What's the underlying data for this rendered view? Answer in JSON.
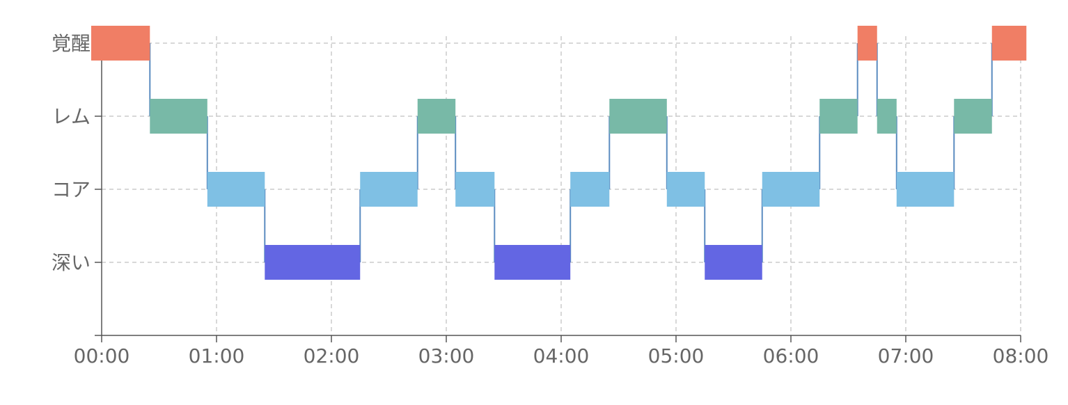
{
  "chart_data": {
    "type": "timeline",
    "x_ticks": [
      "00:00",
      "01:00",
      "02:00",
      "03:00",
      "04:00",
      "05:00",
      "06:00",
      "07:00",
      "08:00"
    ],
    "xlim_hours": [
      0,
      8.05
    ],
    "grid": true,
    "categories": [
      "深い",
      "コア",
      "レム",
      "覚醒"
    ],
    "category_colors": {
      "覚醒": "#f07e65",
      "レム": "#78b9a7",
      "コア": "#7fc0e4",
      "深い": "#6366e3"
    },
    "line_color": "#5b8cc0",
    "segments": [
      {
        "stage": "覚醒",
        "start": 0.0,
        "end": 0.42
      },
      {
        "stage": "レム",
        "start": 0.42,
        "end": 0.92
      },
      {
        "stage": "コア",
        "start": 0.92,
        "end": 1.42
      },
      {
        "stage": "深い",
        "start": 1.42,
        "end": 2.25
      },
      {
        "stage": "コア",
        "start": 2.25,
        "end": 2.75
      },
      {
        "stage": "レム",
        "start": 2.75,
        "end": 3.08
      },
      {
        "stage": "コア",
        "start": 3.08,
        "end": 3.42
      },
      {
        "stage": "深い",
        "start": 3.42,
        "end": 4.08
      },
      {
        "stage": "コア",
        "start": 4.08,
        "end": 4.42
      },
      {
        "stage": "レム",
        "start": 4.42,
        "end": 4.92
      },
      {
        "stage": "コア",
        "start": 4.92,
        "end": 5.25
      },
      {
        "stage": "深い",
        "start": 5.25,
        "end": 5.75
      },
      {
        "stage": "コア",
        "start": 5.75,
        "end": 6.25
      },
      {
        "stage": "レム",
        "start": 6.25,
        "end": 6.58
      },
      {
        "stage": "覚醒",
        "start": 6.58,
        "end": 6.75
      },
      {
        "stage": "レム",
        "start": 6.75,
        "end": 6.92
      },
      {
        "stage": "コア",
        "start": 6.92,
        "end": 7.42
      },
      {
        "stage": "レム",
        "start": 7.42,
        "end": 7.75
      },
      {
        "stage": "覚醒",
        "start": 7.75,
        "end": 8.05
      }
    ]
  }
}
